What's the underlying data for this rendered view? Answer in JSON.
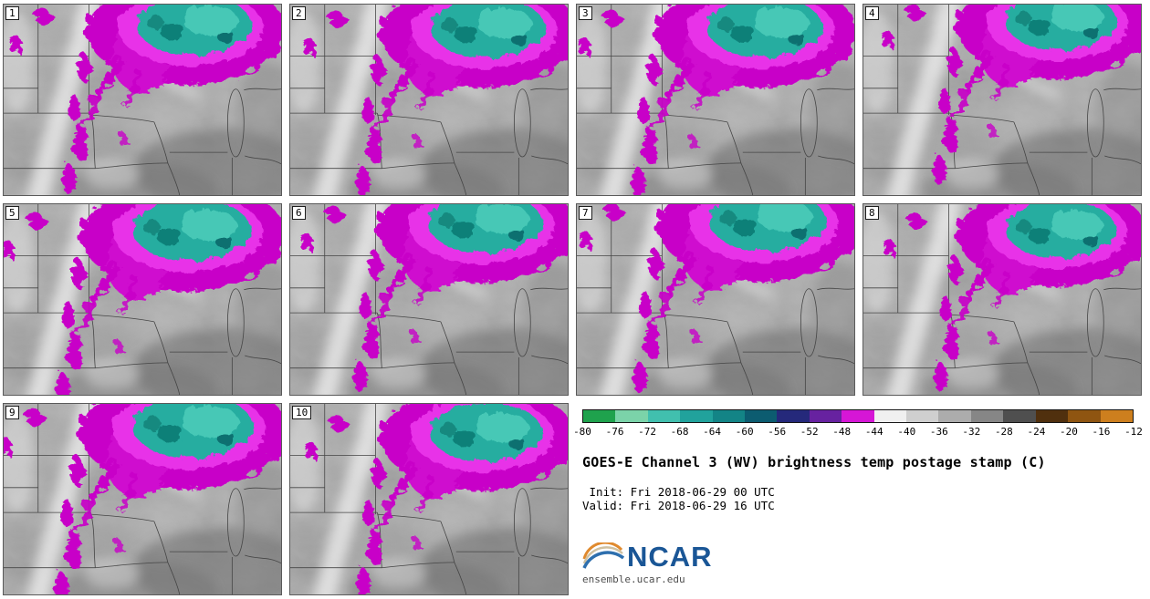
{
  "panels": [
    {
      "label": "1"
    },
    {
      "label": "2"
    },
    {
      "label": "3"
    },
    {
      "label": "4"
    },
    {
      "label": "5"
    },
    {
      "label": "6"
    },
    {
      "label": "7"
    },
    {
      "label": "8"
    },
    {
      "label": "9"
    },
    {
      "label": "10"
    }
  ],
  "legend": {
    "ticks": [
      "-80",
      "-76",
      "-72",
      "-68",
      "-64",
      "-60",
      "-56",
      "-52",
      "-48",
      "-44",
      "-40",
      "-36",
      "-32",
      "-28",
      "-24",
      "-20",
      "-16",
      "-12"
    ],
    "segment_colors": [
      "#1fa24d",
      "#7bd3a9",
      "#41bfae",
      "#21a29c",
      "#138486",
      "#0c5c70",
      "#25297b",
      "#6722a0",
      "#d616d6",
      "#f0f0f0",
      "#cfcfcf",
      "#acacac",
      "#868686",
      "#4f4f4f",
      "#50300e",
      "#8f5511",
      "#cd7f1e"
    ]
  },
  "info": {
    "title": "GOES-E Channel 3 (WV) brightness temp postage stamp (C)",
    "init_line": " Init: Fri 2018-06-29 00 UTC",
    "valid_line": "Valid: Fri 2018-06-29 16 UTC"
  },
  "logo": {
    "name": "NCAR",
    "url": "ensemble.ucar.edu",
    "wordmark_color": "#1a5696"
  },
  "map_palette": {
    "base_gray": "#b0b0b0",
    "cold_ring_magenta": "#c800c8",
    "cold_core_teal": "#25ada0"
  }
}
